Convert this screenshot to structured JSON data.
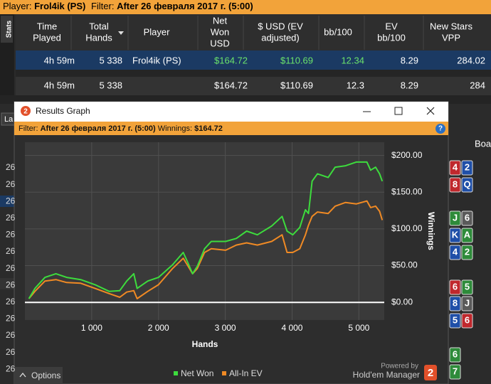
{
  "top_bar": {
    "player_label": "Player:",
    "player": "Frol4ik (PS)",
    "filter_label": "Filter:",
    "filter": "After 26 февраля 2017 г. (5:00)"
  },
  "side_tab": "Stats",
  "table": {
    "columns": [
      [
        "Time",
        "Played"
      ],
      [
        "Total",
        "Hands"
      ],
      [
        "Player"
      ],
      [
        "Net",
        "Won",
        "USD"
      ],
      [
        "$ USD (EV",
        "adjusted)"
      ],
      [
        "bb/100"
      ],
      [
        "EV",
        "bb/100"
      ],
      [
        "New Stars",
        "VPP"
      ]
    ],
    "rows": [
      [
        "4h 59m",
        "5 338",
        "Frol4ik (PS)",
        "$164.72",
        "$110.69",
        "12.34",
        "8.29",
        "284.02"
      ],
      [
        "4h 59m",
        "5 338",
        null,
        "$164.72",
        "$110.69",
        "12.3",
        "8.29",
        "284"
      ]
    ]
  },
  "background_tab": "La",
  "background_column": "Boa",
  "background_rows": [
    "26",
    "26",
    "26",
    "26",
    "26",
    "26",
    "26",
    "26",
    "26",
    "26",
    "26",
    "26",
    "26"
  ],
  "cards": [
    [
      {
        "text": "4",
        "color": "#c0282d"
      },
      {
        "text": "2",
        "color": "#1f4fa8"
      }
    ],
    [
      {
        "text": "8",
        "color": "#c0282d"
      },
      {
        "text": "Q",
        "color": "#1f4fa8"
      }
    ],
    [
      {
        "text": "J",
        "color": "#2e8b3a"
      },
      {
        "text": "6",
        "color": "#5a5a5a"
      }
    ],
    [
      {
        "text": "K",
        "color": "#1f4fa8"
      },
      {
        "text": "A",
        "color": "#2e8b3a"
      }
    ],
    [
      {
        "text": "4",
        "color": "#1f4fa8"
      },
      {
        "text": "2",
        "color": "#2e8b3a"
      }
    ],
    [
      {
        "text": "6",
        "color": "#c0282d"
      },
      {
        "text": "5",
        "color": "#2e8b3a"
      }
    ],
    [
      {
        "text": "8",
        "color": "#1f4fa8"
      },
      {
        "text": "J",
        "color": "#5a5a5a"
      }
    ],
    [
      {
        "text": "5",
        "color": "#1f4fa8"
      },
      {
        "text": "6",
        "color": "#c0282d"
      }
    ],
    [
      {
        "text": "6",
        "color": "#2e8b3a"
      }
    ],
    [
      {
        "text": "7",
        "color": "#2e8b3a"
      }
    ]
  ],
  "window": {
    "icon": "2",
    "title": "Results Graph",
    "filter_label": "Filter:",
    "filter": "After 26 февраля 2017 г. (5:00)",
    "winnings_label": "Winnings:",
    "winnings": "$164.72",
    "help": "?"
  },
  "chart_data": {
    "type": "line",
    "x_label": "Hands",
    "y_label": "Winnings",
    "xlim": [
      0,
      5380
    ],
    "ylim": [
      -24,
      218
    ],
    "xticks": [
      {
        "value": 1000,
        "label": "1 000"
      },
      {
        "value": 2000,
        "label": "2 000"
      },
      {
        "value": 3000,
        "label": "3 000"
      },
      {
        "value": 4000,
        "label": "4 000"
      },
      {
        "value": 5000,
        "label": "5 000"
      }
    ],
    "yticks": [
      {
        "value": 0,
        "label": "$0.00"
      },
      {
        "value": 50,
        "label": "$50.00"
      },
      {
        "value": 100,
        "label": "$100.00"
      },
      {
        "value": 150,
        "label": "$150.00"
      },
      {
        "value": 200,
        "label": "$200.00"
      }
    ],
    "grid": true,
    "x": [
      60,
      150,
      300,
      465,
      625,
      835,
      1050,
      1260,
      1420,
      1525,
      1630,
      1680,
      1840,
      2000,
      2210,
      2370,
      2445,
      2510,
      2580,
      2690,
      2790,
      3005,
      3165,
      3320,
      3480,
      3695,
      3850,
      3925,
      4010,
      4115,
      4200,
      4245,
      4300,
      4380,
      4540,
      4645,
      4800,
      4960,
      5120,
      5175,
      5250,
      5310,
      5350
    ],
    "series": [
      {
        "name": "Net Won",
        "color": "#3ddc3d",
        "values": [
          5,
          19,
          34,
          39,
          34,
          31,
          24,
          15,
          16,
          29,
          39,
          19,
          29,
          34,
          51,
          68,
          53,
          39,
          49,
          73,
          83,
          83,
          87,
          97,
          92,
          104,
          117,
          97,
          92,
          102,
          126,
          121,
          165,
          175,
          170,
          184,
          186,
          191,
          191,
          180,
          184,
          175,
          165
        ]
      },
      {
        "name": "All-In EV",
        "color": "#f08a24",
        "values": [
          5,
          15,
          29,
          31,
          27,
          26,
          19,
          12,
          7,
          14,
          16,
          5,
          15,
          24,
          46,
          60,
          49,
          39,
          46,
          68,
          73,
          71,
          78,
          81,
          78,
          83,
          92,
          68,
          68,
          73,
          92,
          105,
          117,
          123,
          121,
          131,
          136,
          134,
          138,
          129,
          131,
          124,
          112
        ]
      }
    ]
  },
  "footer": {
    "options": "Options",
    "powered_by": "Powered by",
    "brand": "Hold'em Manager",
    "logo": "2"
  }
}
